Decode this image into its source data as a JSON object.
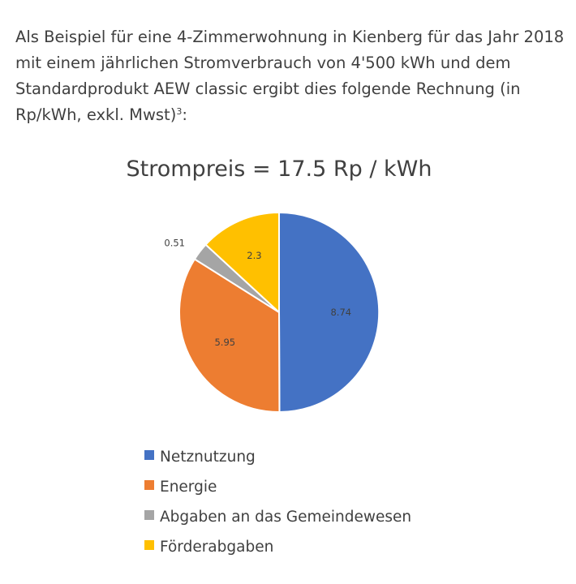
{
  "intro": {
    "text": "Als Beispiel für eine 4-Zimmerwohnung in Kienberg für das Jahr 2018 mit einem jährlichen Stromverbrauch von 4'500 kWh und dem Standardprodukt AEW classic ergibt dies folgende Rechnung (in Rp/kWh, exkl. Mwst)",
    "footnote": "3",
    "suffix": ":"
  },
  "chart_data": {
    "type": "pie",
    "title": "Strompreis = 17.5 Rp / kWh",
    "categories": [
      "Netznutzung",
      "Energie",
      "Abgaben an das Gemeindewesen",
      "Förderabgaben"
    ],
    "values": [
      8.74,
      5.95,
      0.51,
      2.3
    ],
    "data_labels": [
      "8.74",
      "5.95",
      "0.51",
      "2.3"
    ],
    "colors": [
      "#4472C4",
      "#ED7D31",
      "#A5A5A5",
      "#FFC000"
    ],
    "legend_position": "bottom",
    "start": "top, clockwise"
  }
}
